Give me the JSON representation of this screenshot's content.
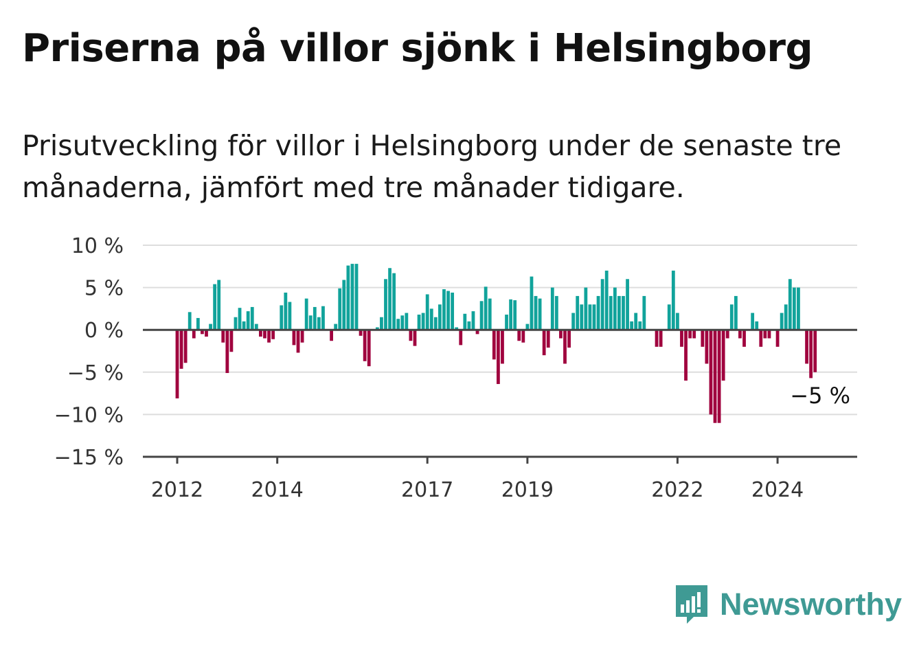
{
  "title": "Priserna på villor sjönk i Helsingborg",
  "subtitle": "Prisutveckling för villor i Helsingborg under de senaste tre månaderna, jämfört med tre månader tidigare.",
  "brand": {
    "name": "Newsworthy",
    "icon": "newsworthy-logo-icon",
    "color": "#3f9a94"
  },
  "colors": {
    "positive": "#11a39b",
    "negative": "#a0023e",
    "grid": "#dddddd",
    "axis": "#444444"
  },
  "chart_data": {
    "type": "bar",
    "title": "Priserna på villor sjönk i Helsingborg",
    "xlabel": "",
    "ylabel": "",
    "ylim": [
      -15,
      10
    ],
    "yticks": [
      10,
      5,
      0,
      -5,
      -10,
      -15
    ],
    "ytick_labels": [
      "10 %",
      "5 %",
      "0 %",
      "−5 %",
      "−10 %",
      "−15 %"
    ],
    "xticks": [
      {
        "label": "2012",
        "index": 0
      },
      {
        "label": "2014",
        "index": 24
      },
      {
        "label": "2017",
        "index": 60
      },
      {
        "label": "2019",
        "index": 84
      },
      {
        "label": "2022",
        "index": 120
      },
      {
        "label": "2024",
        "index": 144
      }
    ],
    "grid": true,
    "annotation": {
      "text": "−5 %",
      "index": 155,
      "value": -5
    },
    "start_month": "2012-01",
    "values": [
      -8.1,
      -4.6,
      -3.9,
      2.1,
      -1.0,
      1.4,
      -0.5,
      -0.8,
      0.7,
      5.4,
      5.9,
      -1.5,
      -5.1,
      -2.6,
      1.5,
      2.6,
      1.0,
      2.2,
      2.7,
      0.7,
      -0.8,
      -1.0,
      -1.5,
      -1.1,
      0,
      2.9,
      4.4,
      3.3,
      -1.8,
      -2.7,
      -1.5,
      3.7,
      1.7,
      2.7,
      1.5,
      2.8,
      0,
      -1.3,
      0.7,
      4.9,
      5.9,
      7.6,
      7.8,
      7.8,
      -0.7,
      -3.7,
      -4.3,
      0,
      0.3,
      1.5,
      6.0,
      7.3,
      6.7,
      1.3,
      1.7,
      2.0,
      -1.3,
      -1.9,
      1.8,
      2.0,
      4.2,
      2.5,
      1.5,
      3.0,
      4.8,
      4.6,
      4.4,
      0.3,
      -1.8,
      1.9,
      1.0,
      2.2,
      -0.5,
      3.4,
      5.1,
      3.7,
      -3.5,
      -6.4,
      -4.0,
      1.8,
      3.6,
      3.5,
      -1.3,
      -1.5,
      0.7,
      6.3,
      4.0,
      3.7,
      -3.0,
      -2.1,
      5.0,
      4.0,
      -1.0,
      -4.0,
      -2.1,
      2.0,
      4.0,
      3.0,
      5.0,
      3.0,
      3.0,
      4.0,
      6.0,
      7.0,
      4.0,
      5.0,
      4.0,
      4.0,
      6.0,
      1.0,
      2.0,
      1.0,
      4.0,
      0,
      0,
      -2.0,
      -2.0,
      0,
      3.0,
      7.0,
      2.0,
      -2.0,
      -6.0,
      -1.0,
      -1.0,
      0,
      -2.0,
      -4.0,
      -10.0,
      -11.0,
      -11.0,
      -6.0,
      -1.0,
      3.0,
      4.0,
      -1.0,
      -2.0,
      0,
      2.0,
      1.0,
      -2.0,
      -1.0,
      -1.0,
      0,
      -2.0,
      2.0,
      3.0,
      6.0,
      5.0,
      5.0,
      0,
      -4.0,
      -5.7,
      -5.0
    ]
  }
}
